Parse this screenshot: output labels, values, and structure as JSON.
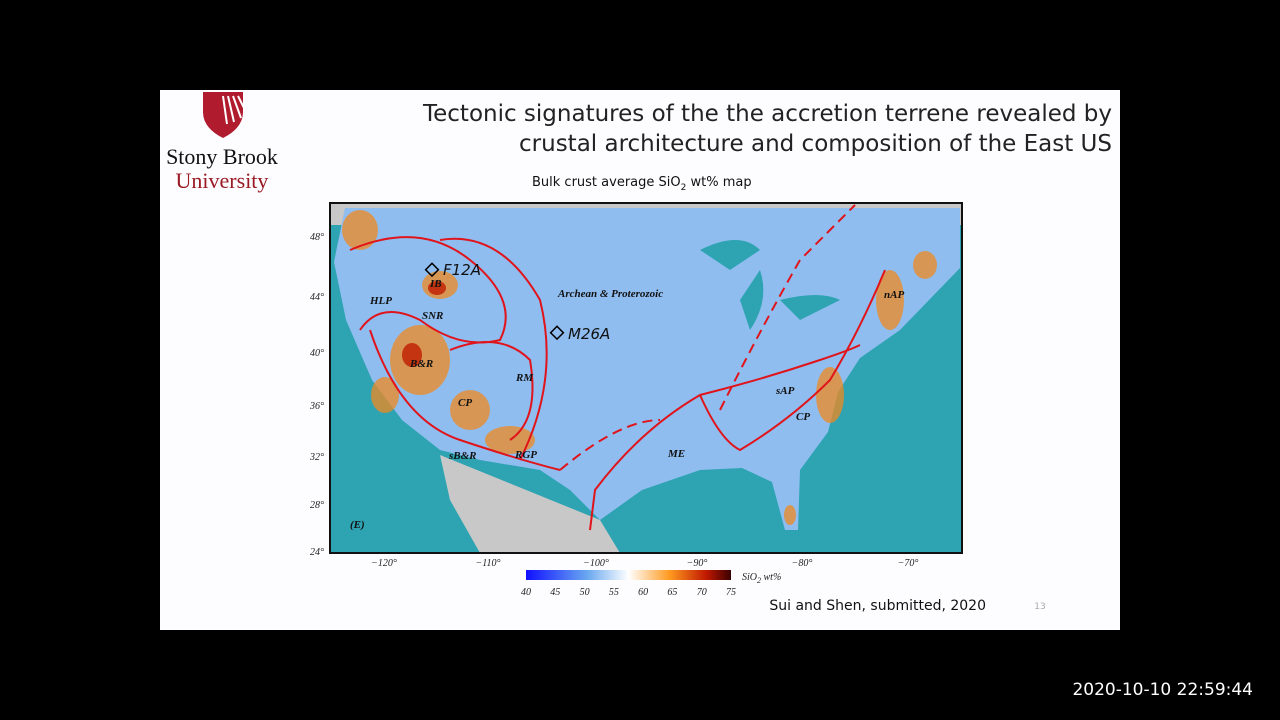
{
  "slide": {
    "logo": {
      "line1": "Stony Brook",
      "line2": "University"
    },
    "title": {
      "line1": "Tectonic signatures of the the accretion terrene revealed by",
      "line2": "crustal architecture and composition of the East US"
    },
    "map_title": {
      "text": "Bulk crust average SiO",
      "sub": "2",
      "tail": " wt% map"
    },
    "map": {
      "lat_ticks": [
        "48°",
        "44°",
        "40°",
        "36°",
        "32°",
        "28°",
        "24°"
      ],
      "lon_ticks": [
        "−120°",
        "−110°",
        "−100°",
        "−90°",
        "−80°",
        "−70°"
      ],
      "labels": [
        "F12A",
        "IB",
        "HLP",
        "SNR",
        "Archean & Proterozoic",
        "M26A",
        "B&R",
        "RM",
        "CP",
        "sAP",
        "CP",
        "nAP",
        "sB&R",
        "RGP",
        "ME",
        "(E)"
      ],
      "colorbar": {
        "ticks": [
          "40",
          "45",
          "50",
          "55",
          "60",
          "65",
          "70",
          "75"
        ],
        "label": "SiO",
        "label_sub": "2",
        "label_tail": " wt%"
      }
    },
    "citation": "Sui and Shen, submitted, 2020",
    "page_number": "13"
  },
  "overlay": {
    "timestamp": "2020-10-10  22:59:44"
  }
}
